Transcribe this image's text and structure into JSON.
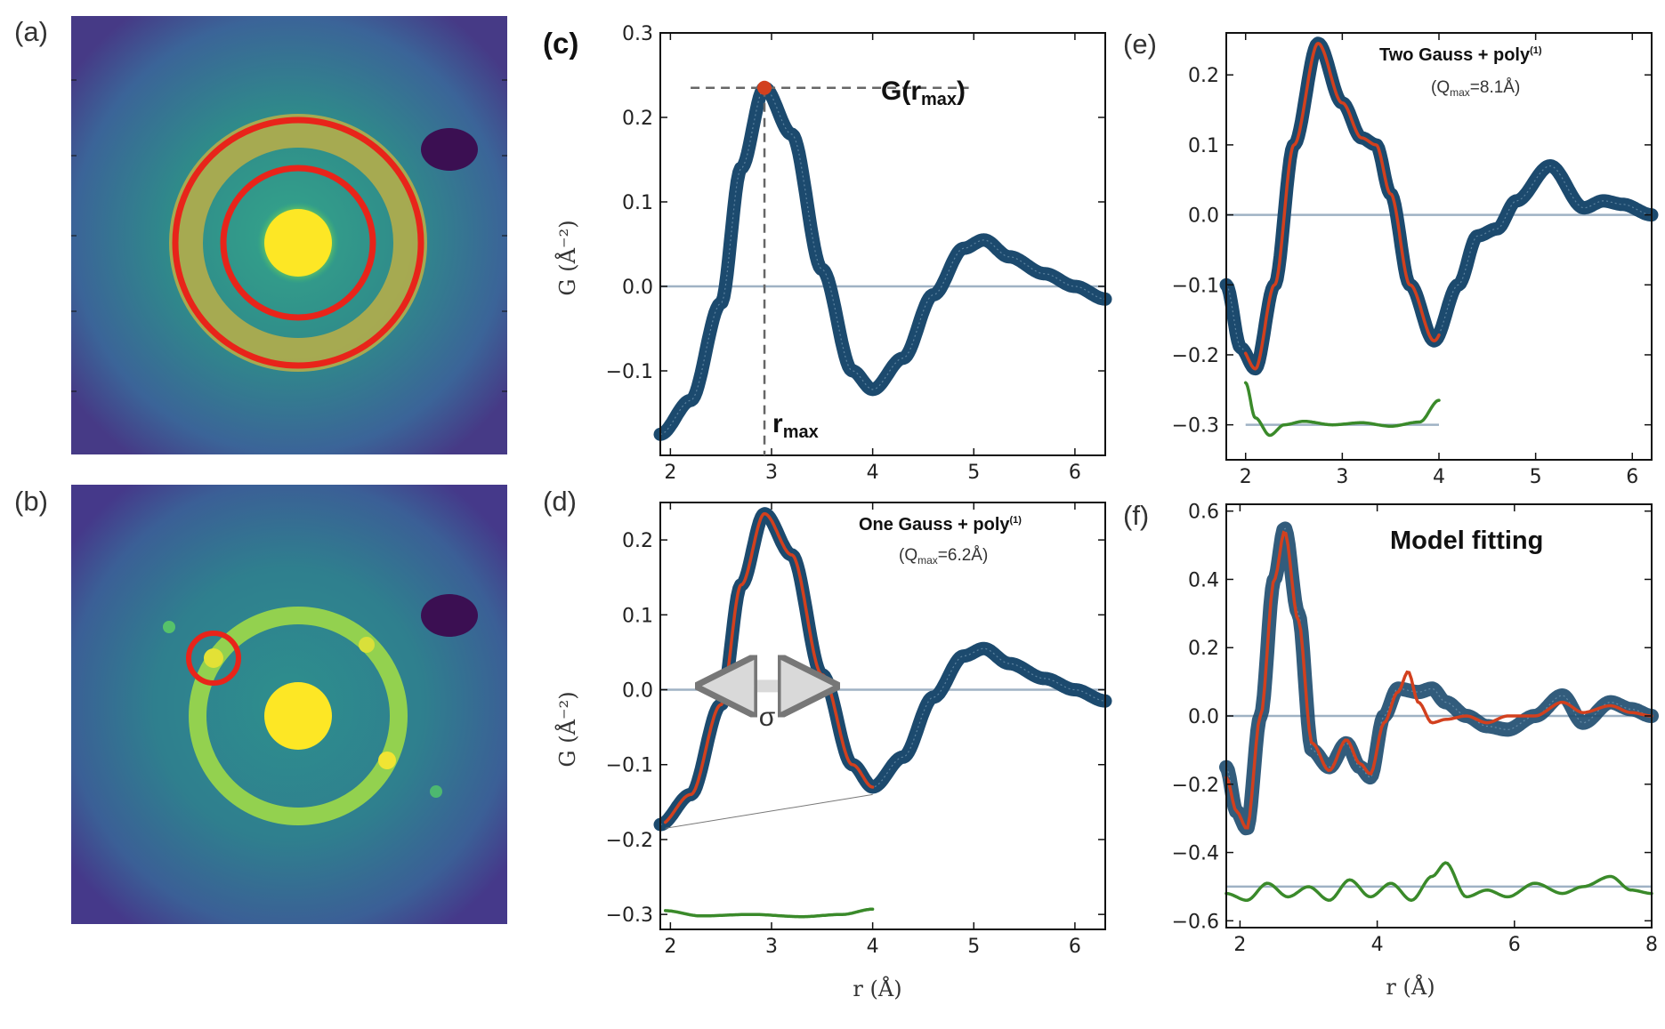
{
  "chart_data": [
    {
      "panel": "(a)",
      "type": "heatmap",
      "description_markers": [
        "red annulus selection"
      ],
      "colors": {
        "background": "#3d5c94",
        "beam": "#f7e41a",
        "ring": "#b3ad4a",
        "markers": "#e8241a"
      }
    },
    {
      "panel": "(b)",
      "type": "heatmap",
      "description_markers": [
        "red circle selection on bright spot"
      ],
      "colors": {
        "background": "#3d5c94",
        "beam": "#f7e41a",
        "ring": "#9cd84a",
        "markers": "#e8241a"
      }
    },
    {
      "panel": "(c)",
      "type": "line",
      "xlim": [
        1.9,
        6.3
      ],
      "ylim": [
        -0.2,
        0.3
      ],
      "xticks": [
        "2",
        "3",
        "4",
        "5",
        "6"
      ],
      "yticks": [
        "0.3",
        "0.2",
        "0.1",
        "0.0",
        "−0.1"
      ],
      "ylabel": "G (Å⁻²)",
      "series": [
        {
          "name": "G(r)",
          "x": [
            1.9,
            2.2,
            2.5,
            2.7,
            2.93,
            3.2,
            3.5,
            3.8,
            4.0,
            4.3,
            4.6,
            4.9,
            5.1,
            5.35,
            5.7,
            6.0,
            6.3
          ],
          "values": [
            -0.175,
            -0.135,
            -0.02,
            0.14,
            0.235,
            0.18,
            0.02,
            -0.1,
            -0.122,
            -0.085,
            -0.01,
            0.045,
            0.055,
            0.035,
            0.015,
            0.0,
            -0.015
          ]
        }
      ],
      "annotations": {
        "peak_label": "G(r",
        "peak_sub": "max",
        "peak_close": ")",
        "rmax_label": "r",
        "rmax_sub": "max",
        "rmax_value": 2.93,
        "gmax_value": 0.235
      }
    },
    {
      "panel": "(d)",
      "type": "line",
      "xlim": [
        1.9,
        6.3
      ],
      "ylim": [
        -0.32,
        0.25
      ],
      "xticks": [
        "2",
        "3",
        "4",
        "5",
        "6"
      ],
      "yticks": [
        "0.2",
        "0.1",
        "0.0",
        "−0.1",
        "−0.2",
        "−0.3"
      ],
      "xlabel": "r (Å)",
      "ylabel": "G (Å⁻²)",
      "series": [
        {
          "name": "G(r)",
          "x": [
            1.9,
            2.2,
            2.5,
            2.7,
            2.93,
            3.2,
            3.5,
            3.8,
            4.0,
            4.3,
            4.6,
            4.9,
            5.1,
            5.35,
            5.7,
            6.0,
            6.3
          ],
          "values": [
            -0.18,
            -0.14,
            -0.02,
            0.14,
            0.235,
            0.18,
            0.02,
            -0.1,
            -0.13,
            -0.09,
            -0.01,
            0.045,
            0.055,
            0.035,
            0.015,
            0.0,
            -0.015
          ]
        },
        {
          "name": "fit",
          "x": [
            1.95,
            4.0
          ]
        },
        {
          "name": "baseline",
          "x": [
            1.95,
            4.0
          ],
          "values": [
            -0.185,
            -0.14
          ]
        },
        {
          "name": "residual",
          "x": [
            1.95,
            2.3,
            2.8,
            3.3,
            3.7,
            4.0
          ],
          "values": [
            -0.295,
            -0.302,
            -0.3,
            -0.303,
            -0.3,
            -0.293
          ]
        }
      ],
      "annotations": {
        "title": "One Gauss + poly",
        "title_sup": "(1)",
        "subtitle_a": "(Q",
        "subtitle_sub": "max",
        "subtitle_b": "=6.2Å)",
        "sigma": "σ"
      }
    },
    {
      "panel": "(e)",
      "type": "line",
      "xlim": [
        1.8,
        6.2
      ],
      "ylim": [
        -0.35,
        0.26
      ],
      "xticks": [
        "2",
        "3",
        "4",
        "5",
        "6"
      ],
      "yticks": [
        "0.2",
        "0.1",
        "0.0",
        "−0.1",
        "−0.2",
        "−0.3"
      ],
      "series": [
        {
          "name": "G(r)",
          "x": [
            1.8,
            1.95,
            2.1,
            2.3,
            2.5,
            2.75,
            3.0,
            3.2,
            3.35,
            3.5,
            3.7,
            3.95,
            4.2,
            4.4,
            4.6,
            4.8,
            5.15,
            5.5,
            5.7,
            5.9,
            6.2
          ],
          "values": [
            -0.1,
            -0.19,
            -0.22,
            -0.1,
            0.1,
            0.245,
            0.16,
            0.11,
            0.1,
            0.03,
            -0.1,
            -0.18,
            -0.1,
            -0.03,
            -0.02,
            0.02,
            0.07,
            0.01,
            0.02,
            0.015,
            0.0
          ]
        },
        {
          "name": "fit",
          "x": [
            2.0,
            4.0
          ]
        },
        {
          "name": "residual",
          "x": [
            2.0,
            2.1,
            2.25,
            2.4,
            2.6,
            2.9,
            3.2,
            3.5,
            3.8,
            4.0
          ],
          "values": [
            -0.24,
            -0.29,
            -0.315,
            -0.3,
            -0.295,
            -0.3,
            -0.297,
            -0.302,
            -0.296,
            -0.265
          ]
        }
      ],
      "annotations": {
        "title": "Two Gauss + poly",
        "title_sup": "(1)",
        "subtitle_a": "(Q",
        "subtitle_sub": "max",
        "subtitle_b": "=8.1Å)"
      }
    },
    {
      "panel": "(f)",
      "type": "line",
      "xlim": [
        1.8,
        8.0
      ],
      "ylim": [
        -0.62,
        0.62
      ],
      "xticks": [
        "2",
        "4",
        "6",
        "8"
      ],
      "yticks": [
        "0.6",
        "0.4",
        "0.2",
        "0.0",
        "−0.2",
        "−0.4",
        "−0.6"
      ],
      "xlabel": "r (Å)",
      "series": [
        {
          "name": "G(r)",
          "x": [
            1.8,
            1.95,
            2.1,
            2.3,
            2.5,
            2.65,
            2.85,
            3.05,
            3.3,
            3.55,
            3.75,
            3.9,
            4.1,
            4.3,
            4.6,
            4.8,
            5.0,
            5.3,
            5.6,
            5.9,
            6.3,
            6.7,
            7.0,
            7.4,
            7.7,
            8.0
          ],
          "values": [
            -0.15,
            -0.28,
            -0.33,
            0.0,
            0.4,
            0.55,
            0.3,
            -0.1,
            -0.15,
            -0.08,
            -0.15,
            -0.18,
            0.0,
            0.08,
            0.07,
            0.08,
            0.04,
            0.0,
            -0.03,
            -0.04,
            0.0,
            0.06,
            -0.02,
            0.04,
            0.02,
            0.0
          ]
        },
        {
          "name": "model",
          "x": [
            1.8,
            1.95,
            2.1,
            2.3,
            2.5,
            2.65,
            2.85,
            3.05,
            3.3,
            3.55,
            3.75,
            3.9,
            4.1,
            4.3,
            4.45,
            4.6,
            4.8,
            5.0,
            5.3,
            5.6,
            5.9,
            6.3,
            6.7,
            7.0,
            7.4,
            7.7,
            8.0
          ],
          "values": [
            -0.18,
            -0.28,
            -0.33,
            0.0,
            0.4,
            0.54,
            0.28,
            -0.08,
            -0.16,
            -0.07,
            -0.14,
            -0.17,
            -0.02,
            0.07,
            0.13,
            0.04,
            -0.02,
            -0.01,
            0.0,
            -0.02,
            0.0,
            0.0,
            0.04,
            0.01,
            0.03,
            0.01,
            0.0
          ]
        },
        {
          "name": "residual",
          "x": [
            1.8,
            2.1,
            2.4,
            2.7,
            3.0,
            3.3,
            3.6,
            3.9,
            4.2,
            4.5,
            4.8,
            5.0,
            5.3,
            5.6,
            5.9,
            6.3,
            6.7,
            7.0,
            7.4,
            7.7,
            8.0
          ],
          "values": [
            -0.52,
            -0.54,
            -0.49,
            -0.53,
            -0.5,
            -0.54,
            -0.48,
            -0.53,
            -0.49,
            -0.54,
            -0.47,
            -0.43,
            -0.53,
            -0.51,
            -0.53,
            -0.49,
            -0.52,
            -0.5,
            -0.47,
            -0.51,
            -0.52
          ]
        }
      ],
      "annotations": {
        "title": "Model fitting"
      }
    }
  ]
}
